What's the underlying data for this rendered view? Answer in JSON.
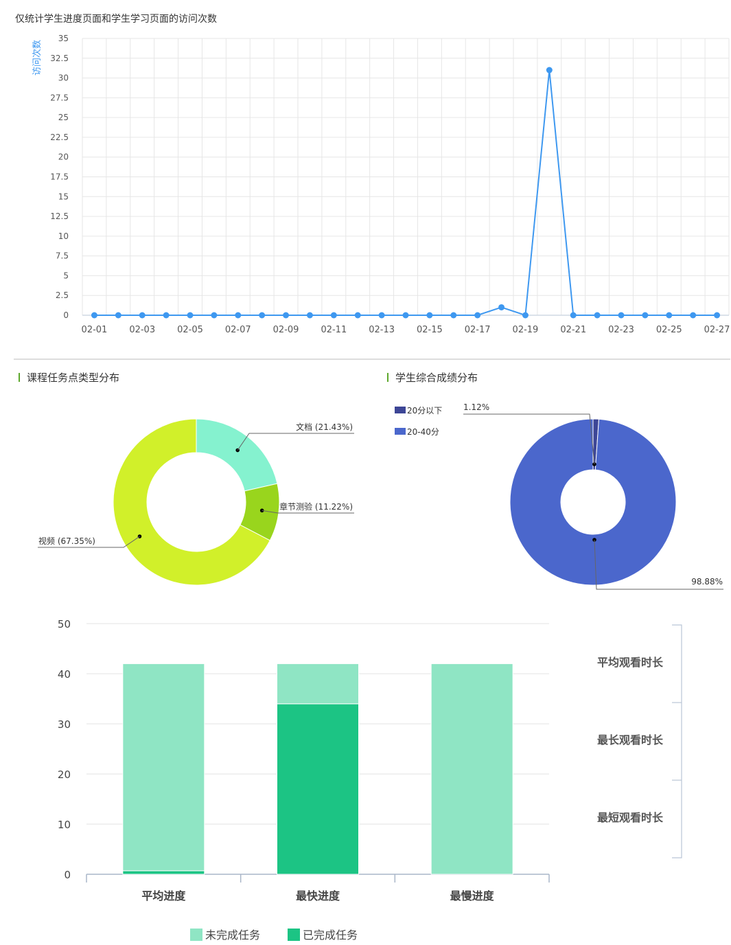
{
  "line_chart_note": "仅统计学生进度页面和学生学习页面的访问次数",
  "section_task_types": "课程任务点类型分布",
  "section_scores": "学生综合成绩分布",
  "colors": {
    "line": "#3e98f0",
    "donut1": [
      "#85f2cf",
      "#99d51d",
      "#d1f02a"
    ],
    "donut2": [
      "#3d4696",
      "#4b67cc"
    ],
    "bar_incomplete": "#8fe5c4",
    "bar_complete": "#1cc484",
    "section_marker": "#5da82c"
  },
  "chart_data": [
    {
      "type": "line",
      "ylabel": "访问次数",
      "ylim": [
        0,
        35
      ],
      "yticks": [
        "0",
        "2.5",
        "5",
        "7.5",
        "10",
        "12.5",
        "15",
        "17.5",
        "20",
        "22.5",
        "25",
        "27.5",
        "30",
        "32.5",
        "35"
      ],
      "x": [
        "02-01",
        "02-02",
        "02-03",
        "02-04",
        "02-05",
        "02-06",
        "02-07",
        "02-08",
        "02-09",
        "02-10",
        "02-11",
        "02-12",
        "02-13",
        "02-14",
        "02-15",
        "02-16",
        "02-17",
        "02-18",
        "02-19",
        "02-20",
        "02-21",
        "02-22",
        "02-23",
        "02-24",
        "02-25",
        "02-26",
        "02-27"
      ],
      "xtick_labels": [
        "02-01",
        "02-03",
        "02-05",
        "02-07",
        "02-09",
        "02-11",
        "02-13",
        "02-15",
        "02-17",
        "02-19",
        "02-21",
        "02-23",
        "02-25",
        "02-27"
      ],
      "values": [
        0,
        0,
        0,
        0,
        0,
        0,
        0,
        0,
        0,
        0,
        0,
        0,
        0,
        0,
        0,
        0,
        0,
        1,
        0,
        31,
        0,
        0,
        0,
        0,
        0,
        0,
        0
      ],
      "grid": true
    },
    {
      "type": "pie",
      "slices": [
        {
          "label": "文档 (21.43%)",
          "value": 21.43
        },
        {
          "label": "章节测验 (11.22%)",
          "value": 11.22
        },
        {
          "label": "视频 (67.35%)",
          "value": 67.35
        }
      ]
    },
    {
      "type": "pie",
      "legend": [
        "20分以下",
        "20-40分"
      ],
      "legend_position": "top-left",
      "slices": [
        {
          "label": "1.12%",
          "value": 1.12
        },
        {
          "label": "98.88%",
          "value": 98.88
        }
      ]
    },
    {
      "type": "bar",
      "stacked": true,
      "categories": [
        "平均进度",
        "最快进度",
        "最慢进度"
      ],
      "ylim": [
        0,
        50
      ],
      "yticks": [
        "0",
        "10",
        "20",
        "30",
        "40",
        "50"
      ],
      "series": [
        {
          "name": "已完成任务",
          "values": [
            0.7,
            34,
            0
          ]
        },
        {
          "name": "未完成任务",
          "values": [
            41.3,
            8,
            42
          ]
        }
      ],
      "legend": [
        "未完成任务",
        "已完成任务"
      ],
      "legend_position": "bottom",
      "side_labels": [
        "平均观看时长",
        "最长观看时长",
        "最短观看时长"
      ]
    }
  ]
}
